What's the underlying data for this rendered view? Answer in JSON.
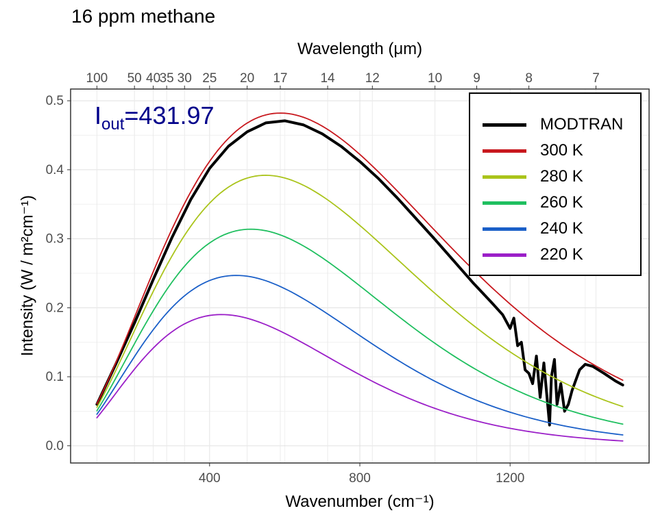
{
  "title": "16 ppm methane",
  "annotation": {
    "label": "I",
    "subscript": "out",
    "equals": "=",
    "value": "431.97"
  },
  "chart_data": {
    "type": "line",
    "title": "16 ppm methane",
    "xlabel": "Wavenumber (cm⁻¹)",
    "ylabel": "Intensity (W / m²cm⁻¹)",
    "x2label": "Wavelength (μm)",
    "xlim": [
      100,
      1500
    ],
    "ylim": [
      0,
      0.5
    ],
    "x_ticks": [
      400,
      800,
      1200
    ],
    "y_ticks": [
      0.0,
      0.1,
      0.2,
      0.3,
      0.4,
      0.5
    ],
    "y_tick_labels": [
      "0.0",
      "0.1",
      "0.2",
      "0.3",
      "0.4",
      "0.5"
    ],
    "x2_ticks": [
      100,
      50,
      40,
      35,
      30,
      25,
      20,
      17,
      14,
      12,
      10,
      9,
      8,
      7
    ],
    "grid": true,
    "legend_position": "top-right",
    "series": [
      {
        "name": "MODTRAN",
        "color": "#000000",
        "values": [
          [
            100,
            0.06
          ],
          [
            150,
            0.118
          ],
          [
            200,
            0.178
          ],
          [
            250,
            0.241
          ],
          [
            300,
            0.302
          ],
          [
            350,
            0.357
          ],
          [
            400,
            0.402
          ],
          [
            450,
            0.434
          ],
          [
            500,
            0.455
          ],
          [
            550,
            0.468
          ],
          [
            600,
            0.471
          ],
          [
            650,
            0.465
          ],
          [
            700,
            0.452
          ],
          [
            750,
            0.434
          ],
          [
            800,
            0.412
          ],
          [
            850,
            0.387
          ],
          [
            900,
            0.359
          ],
          [
            950,
            0.329
          ],
          [
            1000,
            0.299
          ],
          [
            1050,
            0.268
          ],
          [
            1100,
            0.237
          ],
          [
            1150,
            0.208
          ],
          [
            1180,
            0.19
          ],
          [
            1200,
            0.17
          ],
          [
            1210,
            0.185
          ],
          [
            1220,
            0.145
          ],
          [
            1230,
            0.15
          ],
          [
            1240,
            0.11
          ],
          [
            1250,
            0.105
          ],
          [
            1260,
            0.09
          ],
          [
            1270,
            0.13
          ],
          [
            1280,
            0.07
          ],
          [
            1290,
            0.12
          ],
          [
            1300,
            0.06
          ],
          [
            1305,
            0.03
          ],
          [
            1310,
            0.1
          ],
          [
            1318,
            0.125
          ],
          [
            1325,
            0.06
          ],
          [
            1335,
            0.09
          ],
          [
            1345,
            0.05
          ],
          [
            1355,
            0.06
          ],
          [
            1365,
            0.08
          ],
          [
            1375,
            0.095
          ],
          [
            1385,
            0.11
          ],
          [
            1400,
            0.118
          ],
          [
            1420,
            0.115
          ],
          [
            1450,
            0.105
          ],
          [
            1480,
            0.094
          ],
          [
            1500,
            0.088
          ]
        ]
      },
      {
        "name": "300 K",
        "color": "#c8181e",
        "temperature": 300
      },
      {
        "name": "280 K",
        "color": "#aac41b",
        "temperature": 280
      },
      {
        "name": "260 K",
        "color": "#1fbf5f",
        "temperature": 260
      },
      {
        "name": "240 K",
        "color": "#1a5fc8",
        "temperature": 240
      },
      {
        "name": "220 K",
        "color": "#9b1fc8",
        "temperature": 220
      }
    ]
  }
}
